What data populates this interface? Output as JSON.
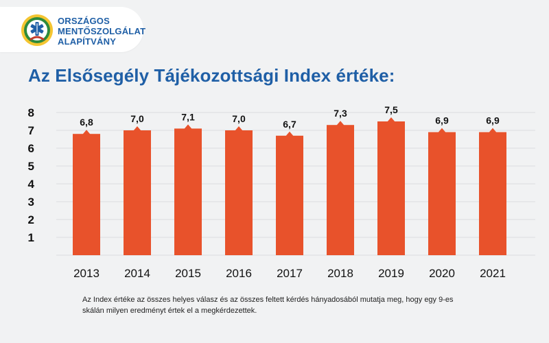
{
  "header": {
    "logo_lines": [
      "ORSZÁGOS",
      "MENTŐSZOLGÁLAT",
      "ALAPÍTVÁNY"
    ],
    "logo_badge_icon": "star-of-life-icon"
  },
  "title": "Az Elsősegély Tájékozottsági Index értéke:",
  "footnote_lines": [
    "Az Index értéke az összes helyes válasz és az összes feltett kérdés hányadosából mutatja meg, hogy egy 9-es",
    "skálán milyen eredményt értek el a megkérdezettek."
  ],
  "colors": {
    "bar": "#e8522b",
    "title": "#1f5fa6",
    "grid": "#dadcdf",
    "background": "#f1f2f3"
  },
  "chart_data": {
    "type": "bar",
    "categories": [
      "2013",
      "2014",
      "2015",
      "2016",
      "2017",
      "2018",
      "2019",
      "2020",
      "2021"
    ],
    "values": [
      6.8,
      7.0,
      7.1,
      7.0,
      6.7,
      7.3,
      7.5,
      6.9,
      6.9
    ],
    "data_labels": [
      "6,8",
      "7,0",
      "7,1",
      "7,0",
      "6,7",
      "7,3",
      "7,5",
      "6,9",
      "6,9"
    ],
    "ytick_labels": [
      "1",
      "2",
      "3",
      "4",
      "5",
      "6",
      "7",
      "8"
    ],
    "ylim": [
      0,
      8
    ],
    "grid": true,
    "legend": "none"
  }
}
